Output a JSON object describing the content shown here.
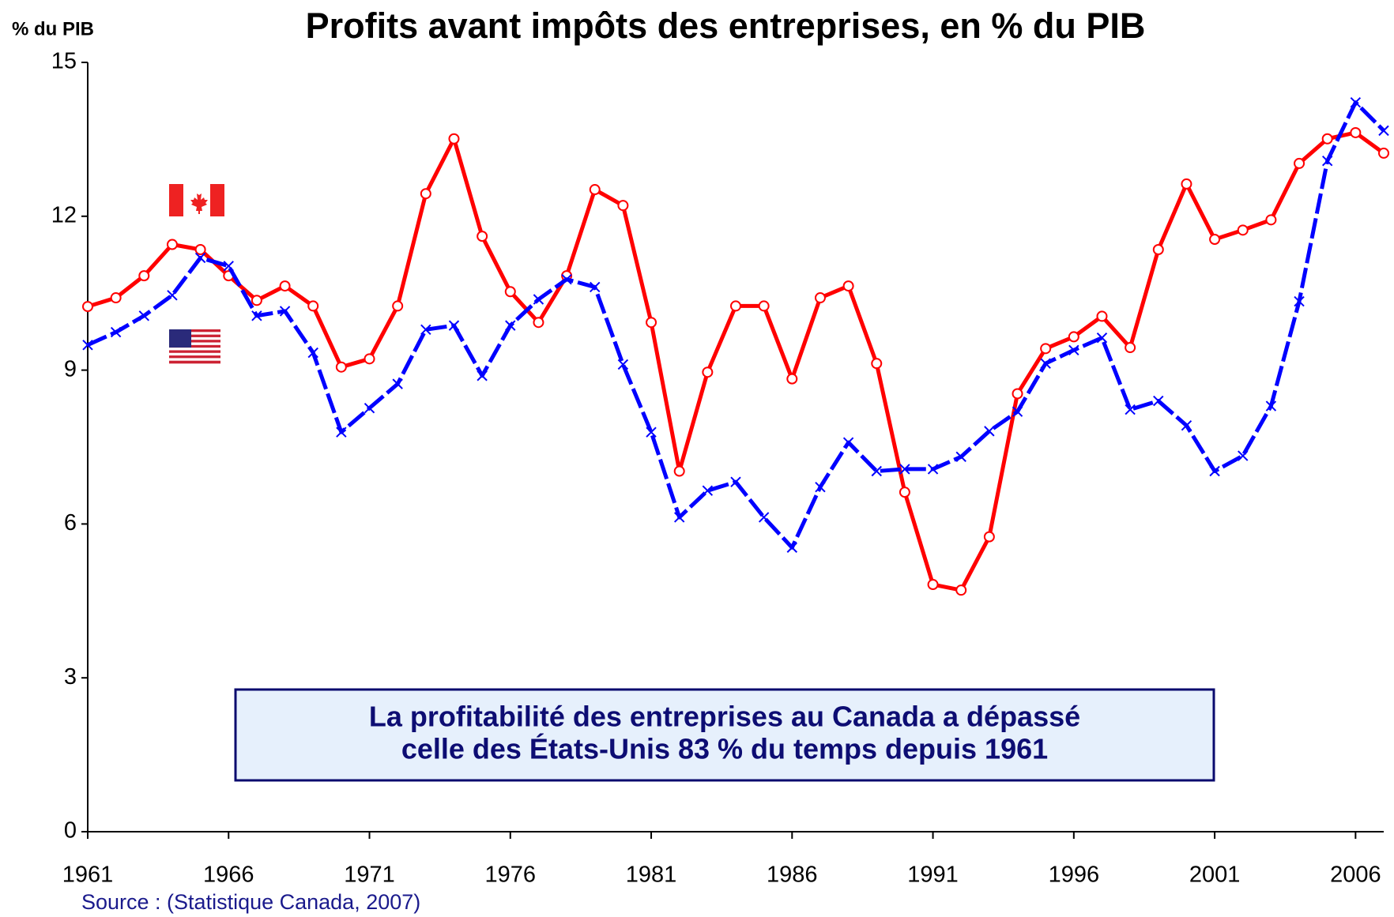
{
  "chart_data": {
    "type": "line",
    "title": "Profits avant impôts des entreprises, en % du PIB",
    "y_label": "% du PIB",
    "source": "Source : (Statistique Canada, 2007)",
    "annotation": [
      "La profitabilité des entreprises au Canada a dépassé",
      "celle des États-Unis 83 % du temps depuis 1961"
    ],
    "x": [
      1961,
      1962,
      1963,
      1964,
      1965,
      1966,
      1967,
      1968,
      1969,
      1970,
      1971,
      1972,
      1973,
      1974,
      1975,
      1976,
      1977,
      1978,
      1979,
      1980,
      1981,
      1982,
      1983,
      1984,
      1985,
      1986,
      1987,
      1988,
      1989,
      1990,
      1991,
      1992,
      1993,
      1994,
      1995,
      1996,
      1997,
      1998,
      1999,
      2000,
      2001,
      2002,
      2003,
      2004,
      2005,
      2006,
      2007
    ],
    "series": [
      {
        "color": "#ff0000",
        "marker": "circle",
        "values": [
          10.24,
          10.41,
          10.84,
          11.45,
          11.35,
          10.84,
          10.36,
          10.64,
          10.25,
          9.06,
          9.22,
          10.25,
          12.44,
          13.51,
          11.61,
          10.53,
          9.93,
          10.84,
          12.52,
          12.21,
          9.93,
          7.03,
          8.96,
          10.25,
          10.25,
          8.83,
          10.41,
          10.64,
          9.13,
          6.62,
          4.82,
          4.71,
          5.75,
          8.54,
          9.42,
          9.65,
          10.05,
          9.44,
          11.35,
          12.63,
          11.55,
          11.73,
          11.93,
          13.03,
          13.51,
          13.63,
          13.23
        ]
      },
      {
        "color": "#0000ff",
        "marker": "x",
        "values": [
          9.49,
          9.74,
          10.06,
          10.46,
          11.19,
          11.03,
          10.06,
          10.15,
          9.34,
          7.79,
          8.26,
          8.73,
          9.79,
          9.87,
          8.89,
          9.87,
          10.38,
          10.77,
          10.62,
          9.11,
          7.79,
          6.13,
          6.65,
          6.82,
          6.13,
          5.54,
          6.72,
          7.59,
          7.03,
          7.07,
          7.07,
          7.31,
          7.81,
          8.19,
          9.13,
          9.39,
          9.63,
          8.23,
          8.4,
          7.92,
          7.03,
          7.33,
          8.3,
          10.34,
          13.08,
          14.22,
          13.67
        ]
      }
    ],
    "xlim": [
      1961,
      2007
    ],
    "xticks": [
      1961,
      1966,
      1971,
      1976,
      1981,
      1986,
      1991,
      1996,
      2001,
      2006
    ],
    "ylim": [
      0,
      15
    ],
    "yticks": [
      0,
      3,
      6,
      9,
      12,
      15
    ]
  }
}
